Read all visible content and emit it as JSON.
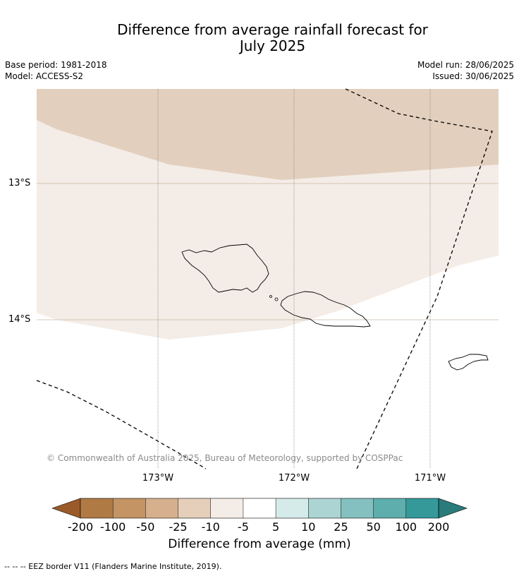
{
  "title_line1": "Difference from average rainfall forecast for",
  "title_line2": "July 2025",
  "base_period": "Base period: 1981-2018",
  "model": "Model: ACCESS-S2",
  "model_run": "Model run: 28/06/2025",
  "issued": "Issued: 30/06/2025",
  "lat_labels": [
    "13°S",
    "14°S"
  ],
  "lon_labels": [
    "173°W",
    "172°W",
    "171°W"
  ],
  "copyright": "© Commonwealth of Australia 2025, Bureau of Meteorology, supported by COSPPac",
  "colorbar": {
    "title": "Difference from average (mm)",
    "ticks": [
      "-200",
      "-100",
      "-50",
      "-25",
      "-10",
      "-5",
      "5",
      "10",
      "25",
      "50",
      "100",
      "200"
    ],
    "colors": [
      "#9a5a2a",
      "#b07a45",
      "#c49465",
      "#d6b08e",
      "#e5cfba",
      "#f4ece6",
      "#ffffff",
      "#d5ebe9",
      "#acd4d2",
      "#84c0c0",
      "#5daeac",
      "#35999a",
      "#2a7b7b"
    ]
  },
  "map_colors": {
    "band_upper": "#e2cfbd",
    "band_lower": "#f4ece6",
    "background": "#ffffff"
  },
  "legend_footer": "--  --  -- EEZ border V11 (Flanders Marine Institute, 2019)."
}
